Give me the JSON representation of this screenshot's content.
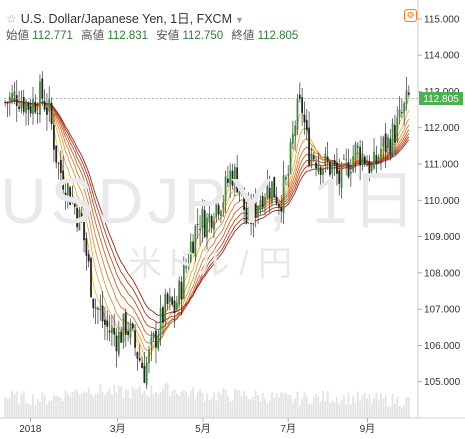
{
  "header": {
    "title": "U.S. Dollar/Japanese Yen, 1日, FXCM",
    "ohlc": [
      {
        "label": "始値",
        "value": "112.771"
      },
      {
        "label": "高値",
        "value": "112.831"
      },
      {
        "label": "安値",
        "value": "112.750"
      },
      {
        "label": "終値",
        "value": "112.805"
      }
    ]
  },
  "watermark": {
    "symbol": "USDJPY, 1日",
    "name": "米ドル / 円"
  },
  "last_price_label": "112.805",
  "colors": {
    "up": "#3a8a3a",
    "down": "#222222",
    "wick": "#333333",
    "ma_fast": "#f5c24a",
    "ma_slow": "#a8201a",
    "price_tag": "#4caf50",
    "gear": "#ff7a1a"
  },
  "chart_data": {
    "type": "candlestick",
    "ylim": [
      104.0,
      115.3
    ],
    "y_ticks": [
      "105.000",
      "106.000",
      "107.000",
      "108.000",
      "109.000",
      "110.000",
      "111.000",
      "112.000",
      "113.000",
      "114.000",
      "115.000"
    ],
    "x_labels": [
      {
        "label": "2018",
        "t": 0.065
      },
      {
        "label": "3月",
        "t": 0.28
      },
      {
        "label": "5月",
        "t": 0.49
      },
      {
        "label": "7月",
        "t": 0.7
      },
      {
        "label": "9月",
        "t": 0.895
      }
    ],
    "close_path": [
      [
        0.0,
        112.7
      ],
      [
        0.03,
        112.9
      ],
      [
        0.06,
        112.6
      ],
      [
        0.09,
        112.9
      ],
      [
        0.11,
        112.4
      ],
      [
        0.13,
        111.0
      ],
      [
        0.16,
        110.2
      ],
      [
        0.19,
        109.3
      ],
      [
        0.22,
        107.2
      ],
      [
        0.25,
        106.5
      ],
      [
        0.28,
        106.2
      ],
      [
        0.3,
        106.6
      ],
      [
        0.32,
        106.0
      ],
      [
        0.345,
        105.3
      ],
      [
        0.36,
        105.8
      ],
      [
        0.38,
        106.5
      ],
      [
        0.4,
        107.1
      ],
      [
        0.42,
        107.0
      ],
      [
        0.44,
        107.8
      ],
      [
        0.46,
        108.8
      ],
      [
        0.48,
        109.5
      ],
      [
        0.5,
        109.4
      ],
      [
        0.52,
        109.9
      ],
      [
        0.54,
        110.1
      ],
      [
        0.56,
        110.8
      ],
      [
        0.58,
        110.5
      ],
      [
        0.6,
        109.3
      ],
      [
        0.62,
        109.8
      ],
      [
        0.64,
        110.3
      ],
      [
        0.66,
        110.4
      ],
      [
        0.68,
        110.0
      ],
      [
        0.7,
        110.6
      ],
      [
        0.72,
        112.3
      ],
      [
        0.735,
        112.6
      ],
      [
        0.75,
        111.4
      ],
      [
        0.77,
        111.2
      ],
      [
        0.79,
        111.0
      ],
      [
        0.81,
        110.9
      ],
      [
        0.83,
        110.5
      ],
      [
        0.85,
        111.0
      ],
      [
        0.87,
        111.4
      ],
      [
        0.89,
        111.2
      ],
      [
        0.91,
        110.8
      ],
      [
        0.93,
        111.4
      ],
      [
        0.95,
        111.6
      ],
      [
        0.97,
        112.0
      ],
      [
        1.0,
        112.8
      ]
    ],
    "volume_profile": [
      [
        0.0,
        0.35
      ],
      [
        0.1,
        0.3
      ],
      [
        0.2,
        0.55
      ],
      [
        0.3,
        0.45
      ],
      [
        0.4,
        0.55
      ],
      [
        0.5,
        0.4
      ],
      [
        0.6,
        0.4
      ],
      [
        0.7,
        0.3
      ],
      [
        0.8,
        0.35
      ],
      [
        0.9,
        0.3
      ],
      [
        1.0,
        0.25
      ]
    ],
    "ma_count": 8
  }
}
